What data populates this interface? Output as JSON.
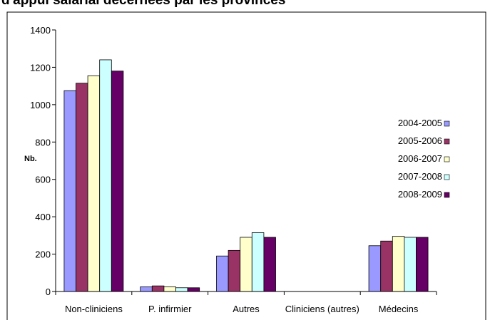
{
  "chart_data": {
    "type": "bar",
    "title": "d'appui salarial décernées par les provinces",
    "y_label": "Nb.",
    "categories": [
      "Non-cliniciens",
      "P. infirmier",
      "Autres",
      "Cliniciens (autres)",
      "Médecins"
    ],
    "series": [
      {
        "name": "2004-2005",
        "color": "#9999ff",
        "values": [
          1075,
          25,
          190,
          0,
          245
        ]
      },
      {
        "name": "2005-2006",
        "color": "#993366",
        "values": [
          1115,
          30,
          220,
          0,
          270
        ]
      },
      {
        "name": "2006-2007",
        "color": "#ffffcc",
        "values": [
          1155,
          25,
          290,
          0,
          295
        ]
      },
      {
        "name": "2007-2008",
        "color": "#ccffff",
        "values": [
          1240,
          20,
          315,
          0,
          290
        ]
      },
      {
        "name": "2008-2009",
        "color": "#660066",
        "values": [
          1180,
          20,
          290,
          0,
          290
        ]
      }
    ],
    "ylim": [
      0,
      1400
    ],
    "yticks": [
      0,
      200,
      400,
      600,
      800,
      1000,
      1200,
      1400
    ],
    "legend": "right"
  }
}
